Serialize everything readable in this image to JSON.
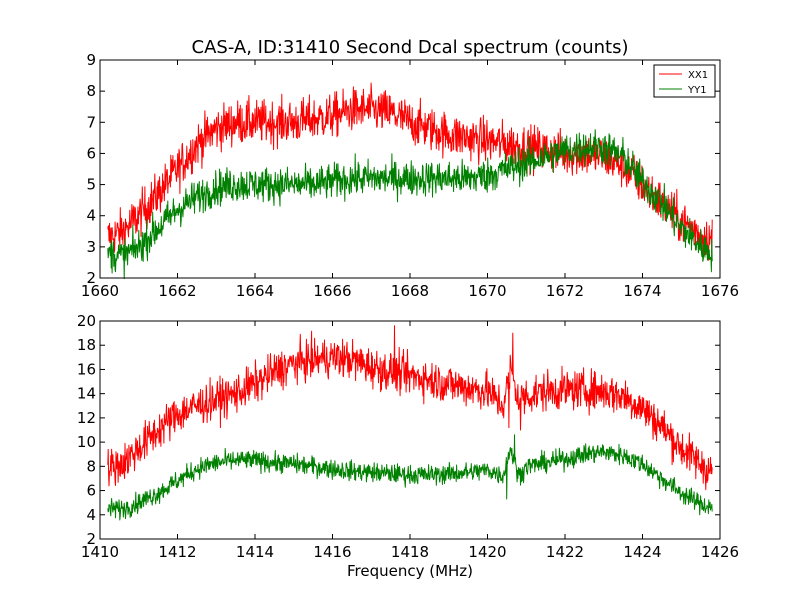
{
  "figure": {
    "title": "CAS-A, ID:31410 Second Dcal spectrum (counts)",
    "xlabel": "Frequency (MHz)"
  },
  "colors": {
    "XX1": "#ff0000",
    "YY1": "#008000",
    "axes": "#000000",
    "background": "#ffffff"
  },
  "chart_data": [
    {
      "type": "line",
      "title": "CAS-A, ID:31410 Second Dcal spectrum (counts)",
      "xlabel": "",
      "ylabel": "",
      "xlim": [
        1660,
        1676
      ],
      "ylim": [
        2,
        9
      ],
      "xticks": [
        1660,
        1662,
        1664,
        1666,
        1668,
        1670,
        1672,
        1674,
        1676
      ],
      "yticks": [
        2,
        3,
        4,
        5,
        6,
        7,
        8,
        9
      ],
      "legend": "top-right",
      "grid": false,
      "series": [
        {
          "name": "XX1",
          "color": "#ff0000",
          "noise": 0.35,
          "x": [
            1660.2,
            1660.6,
            1661.0,
            1661.5,
            1662.0,
            1662.5,
            1663.0,
            1663.5,
            1664.0,
            1664.5,
            1665.0,
            1665.5,
            1666.0,
            1666.5,
            1667.0,
            1667.5,
            1668.0,
            1668.5,
            1669.0,
            1669.5,
            1670.0,
            1670.5,
            1671.0,
            1671.5,
            1672.0,
            1672.5,
            1673.0,
            1673.5,
            1674.0,
            1674.5,
            1675.0,
            1675.5,
            1675.8
          ],
          "y": [
            3.3,
            3.5,
            4.0,
            4.7,
            5.5,
            6.3,
            6.8,
            7.0,
            7.0,
            7.0,
            7.0,
            7.1,
            7.2,
            7.4,
            7.4,
            7.3,
            7.0,
            6.8,
            6.6,
            6.5,
            6.4,
            6.3,
            6.2,
            6.1,
            6.0,
            6.0,
            5.9,
            5.6,
            5.0,
            4.4,
            3.8,
            3.4,
            3.2
          ]
        },
        {
          "name": "YY1",
          "color": "#008000",
          "noise": 0.28,
          "x": [
            1660.2,
            1660.6,
            1661.0,
            1661.5,
            1662.0,
            1662.5,
            1663.0,
            1663.5,
            1664.0,
            1664.5,
            1665.0,
            1665.5,
            1666.0,
            1666.5,
            1667.0,
            1667.5,
            1668.0,
            1668.5,
            1669.0,
            1669.5,
            1670.0,
            1670.5,
            1671.0,
            1671.5,
            1672.0,
            1672.5,
            1673.0,
            1673.5,
            1674.0,
            1674.5,
            1675.0,
            1675.5,
            1675.8
          ],
          "y": [
            2.8,
            2.7,
            3.0,
            3.6,
            4.2,
            4.6,
            4.9,
            5.0,
            5.0,
            5.0,
            5.0,
            5.0,
            5.1,
            5.2,
            5.2,
            5.2,
            5.2,
            5.2,
            5.2,
            5.2,
            5.3,
            5.5,
            5.7,
            5.9,
            6.1,
            6.2,
            6.2,
            5.9,
            5.1,
            4.4,
            3.6,
            3.0,
            2.8
          ]
        }
      ]
    },
    {
      "type": "line",
      "title": "",
      "xlabel": "Frequency (MHz)",
      "ylabel": "",
      "xlim": [
        1410,
        1426
      ],
      "ylim": [
        2,
        20
      ],
      "xticks": [
        1410,
        1412,
        1414,
        1416,
        1418,
        1420,
        1422,
        1424,
        1426
      ],
      "yticks": [
        2,
        4,
        6,
        8,
        10,
        12,
        14,
        16,
        18,
        20
      ],
      "grid": false,
      "series": [
        {
          "color": "#ff0000",
          "noise": 0.8,
          "x": [
            1410.2,
            1410.6,
            1411.0,
            1411.5,
            1412.0,
            1412.5,
            1413.0,
            1413.5,
            1414.0,
            1414.5,
            1415.0,
            1415.5,
            1416.0,
            1416.5,
            1417.0,
            1417.5,
            1418.0,
            1418.5,
            1419.0,
            1419.5,
            1420.0,
            1420.4,
            1420.6,
            1420.8,
            1421.0,
            1421.5,
            1422.0,
            1422.5,
            1423.0,
            1423.5,
            1424.0,
            1424.5,
            1425.0,
            1425.5,
            1425.8
          ],
          "y": [
            7.8,
            8.3,
            9.5,
            11.0,
            12.3,
            13.0,
            13.5,
            14.0,
            14.8,
            15.8,
            16.5,
            16.8,
            17.0,
            16.8,
            16.2,
            15.8,
            15.5,
            15.2,
            14.8,
            14.5,
            14.2,
            13.0,
            16.0,
            13.5,
            13.8,
            14.2,
            14.3,
            14.3,
            14.2,
            13.8,
            12.8,
            11.3,
            9.5,
            8.2,
            7.5
          ],
          "spikes": [
            {
              "x": 1420.65,
              "y": 19.0
            },
            {
              "x": 1420.55,
              "y": 11.2
            },
            {
              "x": 1417.6,
              "y": 19.6
            },
            {
              "x": 1420.85,
              "y": 11.0
            }
          ]
        },
        {
          "color": "#008000",
          "noise": 0.4,
          "x": [
            1410.2,
            1410.6,
            1411.0,
            1411.5,
            1412.0,
            1412.5,
            1413.0,
            1413.5,
            1414.0,
            1414.5,
            1415.0,
            1415.5,
            1416.0,
            1416.5,
            1417.0,
            1417.5,
            1418.0,
            1418.5,
            1419.0,
            1419.5,
            1420.0,
            1420.4,
            1420.6,
            1420.8,
            1421.0,
            1421.5,
            1422.0,
            1422.5,
            1423.0,
            1423.5,
            1424.0,
            1424.5,
            1425.0,
            1425.5,
            1425.8
          ],
          "y": [
            4.5,
            4.5,
            5.0,
            5.8,
            6.8,
            7.8,
            8.3,
            8.5,
            8.5,
            8.3,
            8.2,
            8.0,
            7.8,
            7.6,
            7.5,
            7.4,
            7.3,
            7.3,
            7.4,
            7.5,
            7.7,
            7.2,
            9.5,
            7.2,
            8.0,
            8.3,
            8.6,
            9.0,
            9.2,
            8.9,
            8.2,
            7.0,
            5.8,
            4.9,
            4.6
          ],
          "spikes": [
            {
              "x": 1420.7,
              "y": 10.6
            },
            {
              "x": 1420.5,
              "y": 5.3
            }
          ]
        }
      ]
    }
  ]
}
